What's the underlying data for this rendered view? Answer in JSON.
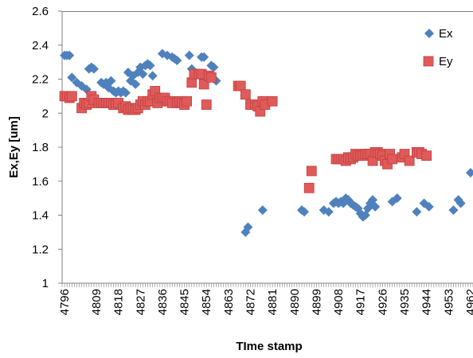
{
  "chart_data": {
    "type": "scatter",
    "title": "",
    "xlabel": "TIme stamp",
    "ylabel": "Ex,Ey [um]",
    "xlim": [
      4795,
      4963
    ],
    "ylim": [
      1,
      2.6
    ],
    "y_ticks": [
      "1",
      "1.2",
      "1.4",
      "1.6",
      "1.8",
      "2",
      "2.2",
      "2.4",
      "2.6"
    ],
    "x_ticks": [
      "4796",
      "4809",
      "4818",
      "4827",
      "4836",
      "4845",
      "4854",
      "4863",
      "4872",
      "4881",
      "4890",
      "4899",
      "4908",
      "4917",
      "4926",
      "4935",
      "4944",
      "4953",
      "4962"
    ],
    "grid": false,
    "legend_position": "top-right",
    "series": [
      {
        "name": "Ex",
        "marker": "diamond",
        "color": "#4f81bd",
        "x": [
          4796,
          4797,
          4798,
          4799,
          4801,
          4803,
          4805,
          4806,
          4807,
          4808,
          4811,
          4812,
          4813,
          4814,
          4815,
          4816,
          4817,
          4818,
          4819,
          4820,
          4821,
          4822,
          4823,
          4824,
          4825,
          4826,
          4827,
          4828,
          4829,
          4830,
          4831,
          4832,
          4836,
          4838,
          4840,
          4841,
          4842,
          4847,
          4848,
          4849,
          4852,
          4853,
          4856,
          4857,
          4858,
          4870,
          4871,
          4877,
          4893,
          4894,
          4902,
          4904,
          4906,
          4907,
          4908,
          4909,
          4910,
          4911,
          4912,
          4913,
          4914,
          4915,
          4916,
          4917,
          4918,
          4919,
          4920,
          4921,
          4922,
          4923,
          4930,
          4932,
          4940,
          4943,
          4945,
          4955,
          4957,
          4958,
          4962
        ],
        "y": [
          2.34,
          2.34,
          2.34,
          2.21,
          2.18,
          2.16,
          2.14,
          2.26,
          2.27,
          2.26,
          2.18,
          2.17,
          2.18,
          2.15,
          2.19,
          2.13,
          2.12,
          2.13,
          2.12,
          2.13,
          2.12,
          2.24,
          2.19,
          2.22,
          2.17,
          2.24,
          2.27,
          2.23,
          2.28,
          2.29,
          2.28,
          2.22,
          2.35,
          2.34,
          2.33,
          2.32,
          2.31,
          2.34,
          2.26,
          2.22,
          2.33,
          2.33,
          2.28,
          2.27,
          2.19,
          1.3,
          1.33,
          1.43,
          1.43,
          1.42,
          1.43,
          1.42,
          1.47,
          1.48,
          1.47,
          1.48,
          1.47,
          1.5,
          1.49,
          1.47,
          1.46,
          1.45,
          1.44,
          1.41,
          1.39,
          1.4,
          1.44,
          1.47,
          1.49,
          1.45,
          1.48,
          1.5,
          1.42,
          1.47,
          1.45,
          1.43,
          1.49,
          1.47,
          1.65
        ]
      },
      {
        "name": "Ey",
        "marker": "square",
        "color": "#e05a5a",
        "x": [
          4796,
          4797,
          4798,
          4799,
          4803,
          4804,
          4805,
          4806,
          4807,
          4808,
          4810,
          4811,
          4812,
          4813,
          4814,
          4815,
          4816,
          4817,
          4818,
          4820,
          4821,
          4822,
          4823,
          4824,
          4825,
          4826,
          4827,
          4828,
          4829,
          4830,
          4831,
          4832,
          4833,
          4834,
          4835,
          4836,
          4837,
          4838,
          4839,
          4840,
          4842,
          4843,
          4844,
          4845,
          4846,
          4848,
          4849,
          4851,
          4852,
          4853,
          4854,
          4855,
          4856,
          4867,
          4868,
          4870,
          4872,
          4874,
          4875,
          4876,
          4877,
          4878,
          4881,
          4896,
          4897,
          4907,
          4908,
          4909,
          4910,
          4911,
          4912,
          4913,
          4914,
          4915,
          4916,
          4917,
          4918,
          4919,
          4920,
          4921,
          4922,
          4923,
          4924,
          4925,
          4926,
          4927,
          4928,
          4929,
          4930,
          4934,
          4935,
          4937,
          4940,
          4941,
          4942,
          4944
        ],
        "y": [
          2.1,
          2.1,
          2.09,
          2.1,
          2.03,
          2.06,
          2.05,
          2.06,
          2.1,
          2.08,
          2.06,
          2.06,
          2.06,
          2.06,
          2.06,
          2.06,
          2.05,
          2.05,
          2.06,
          2.03,
          2.04,
          2.02,
          2.03,
          2.02,
          2.02,
          2.03,
          2.05,
          2.07,
          2.05,
          2.07,
          2.07,
          2.11,
          2.13,
          2.06,
          2.09,
          2.09,
          2.09,
          2.07,
          2.07,
          2.06,
          2.06,
          2.07,
          2.06,
          2.05,
          2.07,
          2.18,
          2.23,
          2.23,
          2.23,
          2.17,
          2.05,
          2.22,
          2.21,
          2.16,
          2.16,
          2.11,
          2.05,
          2.05,
          2.04,
          2.01,
          2.07,
          2.05,
          2.07,
          1.56,
          1.66,
          1.73,
          1.73,
          1.73,
          1.73,
          1.72,
          1.74,
          1.73,
          1.74,
          1.76,
          1.75,
          1.75,
          1.75,
          1.76,
          1.76,
          1.76,
          1.72,
          1.77,
          1.77,
          1.76,
          1.75,
          1.72,
          1.7,
          1.76,
          1.73,
          1.74,
          1.76,
          1.72,
          1.77,
          1.77,
          1.76,
          1.75
        ]
      }
    ]
  }
}
